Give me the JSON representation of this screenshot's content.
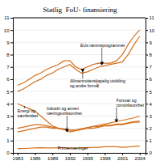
{
  "chart_data": {
    "type": "line",
    "title": "Statlig  FoU- finansiering",
    "x": [
      1983,
      1984,
      1985,
      1986,
      1987,
      1988,
      1989,
      1990,
      1991,
      1992,
      1993,
      1994,
      1995,
      1996,
      1997,
      1998,
      1999,
      2000,
      2001,
      2002,
      2003,
      2004
    ],
    "series": [
      {
        "color": "#d4711e",
        "values": [
          5.5,
          5.7,
          6.0,
          6.3,
          6.5,
          6.8,
          7.0,
          7.2,
          7.5,
          7.5,
          7.0,
          6.8,
          7.0,
          7.2,
          7.3,
          7.3,
          7.3,
          7.5,
          8.0,
          8.8,
          9.5,
          10.0
        ]
      },
      {
        "color": "#d4711e",
        "values": [
          5.0,
          5.2,
          5.5,
          5.8,
          6.0,
          6.3,
          6.5,
          6.8,
          7.0,
          7.2,
          6.8,
          6.5,
          6.6,
          6.8,
          7.0,
          7.1,
          7.2,
          7.3,
          7.4,
          8.0,
          8.8,
          9.5
        ]
      },
      {
        "color": "#d4711e",
        "values": [
          4.0,
          3.8,
          3.6,
          3.4,
          3.0,
          2.6,
          2.2,
          2.0,
          1.9,
          1.85,
          1.85,
          1.95,
          2.05,
          2.15,
          2.15,
          2.25,
          2.25,
          2.35,
          2.35,
          2.45,
          2.55,
          2.6
        ]
      },
      {
        "color": "#d4711e",
        "values": [
          2.0,
          2.1,
          2.2,
          2.3,
          2.3,
          2.2,
          2.1,
          2.0,
          1.9,
          1.7,
          1.8,
          1.9,
          2.0,
          2.0,
          2.1,
          2.2,
          2.2,
          2.3,
          2.3,
          2.4,
          2.5,
          2.5
        ]
      },
      {
        "color": "#d4711e",
        "values": [
          1.7,
          1.8,
          1.9,
          2.0,
          2.1,
          2.1,
          2.0,
          2.0,
          1.95,
          1.85,
          1.85,
          1.95,
          2.05,
          2.15,
          2.25,
          2.35,
          2.45,
          2.55,
          2.65,
          2.75,
          2.85,
          3.0
        ]
      },
      {
        "color": "#d4711e",
        "values": [
          0.35,
          0.35,
          0.38,
          0.4,
          0.42,
          0.4,
          0.4,
          0.42,
          0.42,
          0.38,
          0.38,
          0.4,
          0.42,
          0.45,
          0.45,
          0.5,
          0.5,
          0.5,
          0.45,
          0.48,
          0.52,
          0.55
        ]
      }
    ],
    "xlim": [
      1982.2,
      2005.0
    ],
    "xticks": [
      1983,
      1986,
      1989,
      1992,
      1995,
      1998,
      2001,
      2004
    ],
    "ylim": [
      0,
      11
    ],
    "yticks": [
      0,
      1,
      2,
      3,
      4,
      5,
      6,
      7,
      8,
      9,
      10,
      11
    ],
    "y2lim": [
      0,
      11
    ],
    "y2ticks": [
      0,
      1,
      2,
      3,
      4,
      5,
      6,
      7,
      8,
      9,
      10,
      11
    ],
    "grid": true,
    "annotations": [
      {
        "text": "EUs rammeprogrammer",
        "x": 1997.5,
        "y": 7.3,
        "text_x": 1993.8,
        "text_y": 8.55,
        "marker": "triangle-down"
      },
      {
        "text": "Allmennvitenskapelig utvikling\nog andre formål",
        "x": 1994.2,
        "y": 6.75,
        "text_x": 1992.0,
        "text_y": 5.25,
        "marker": "triangle-down"
      },
      {
        "text": "Industri og annen\nnæringsvirksomhet",
        "x": 1991.5,
        "y": 1.85,
        "text_x": 1988.0,
        "text_y": 3.0,
        "marker": "triangle-down"
      },
      {
        "text": "Forsvar og\nromvirksomhet",
        "x": 2000.0,
        "y": 2.65,
        "text_x": 2000.0,
        "text_y": 3.7,
        "marker": "triangle-down"
      },
      {
        "text": "Energi og\nsamferdsel",
        "x": 1984.2,
        "y": 3.8,
        "text_x": 1983.0,
        "text_y": 2.85
      },
      {
        "text": "Primærnæringer",
        "x": 1992.5,
        "y": 0.18
      }
    ]
  }
}
